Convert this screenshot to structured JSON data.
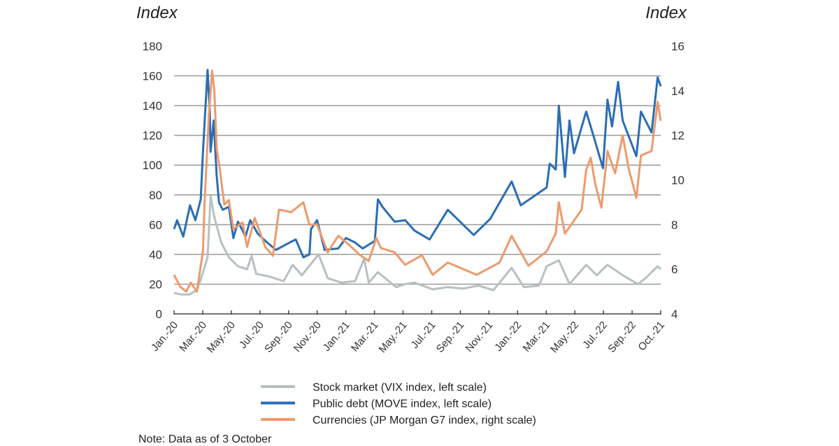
{
  "chart_data": {
    "type": "line",
    "left_axis_title": "Index",
    "right_axis_title": "Index",
    "left_ylim": [
      0,
      180
    ],
    "right_ylim": [
      4,
      16
    ],
    "left_ticks": [
      "0",
      "20",
      "40",
      "60",
      "80",
      "100",
      "120",
      "140",
      "160",
      "180"
    ],
    "right_ticks": [
      "4",
      "6",
      "8",
      "10",
      "12",
      "14",
      "16"
    ],
    "x_unit": "months since Jan-20",
    "xlim": [
      0,
      32
    ],
    "x_tick_labels": [
      "Jan.-20",
      "Mar.-20",
      "May.-20",
      "Jul.-20",
      "Sep.-20",
      "Nov.-20",
      "Jan.-21",
      "Mar.-21",
      "May.-21",
      "Jul.-21",
      "Sep.-21",
      "Nov.-21",
      "Jan.-22",
      "Mar.-21",
      "May.-22",
      "Jul.-22",
      "Sep.-22",
      "Oct.-21"
    ],
    "grid": true,
    "series": [
      {
        "name": "Stock market (VIX index, left scale)",
        "axis": "left",
        "color": "#b5c1c2",
        "points": [
          [
            0,
            14
          ],
          [
            0.5,
            13
          ],
          [
            1,
            13
          ],
          [
            1.5,
            16
          ],
          [
            1.75,
            23
          ],
          [
            2.2,
            38
          ],
          [
            2.4,
            79
          ],
          [
            2.65,
            65
          ],
          [
            3.1,
            48
          ],
          [
            3.6,
            38
          ],
          [
            4.2,
            32
          ],
          [
            4.8,
            30
          ],
          [
            5.1,
            39
          ],
          [
            5.4,
            27
          ],
          [
            6.3,
            25
          ],
          [
            7.2,
            22
          ],
          [
            7.8,
            33
          ],
          [
            8.4,
            26
          ],
          [
            9.5,
            40
          ],
          [
            10.1,
            24
          ],
          [
            11,
            21
          ],
          [
            11.9,
            22
          ],
          [
            12.5,
            37
          ],
          [
            12.8,
            21
          ],
          [
            13.4,
            28
          ],
          [
            14.6,
            18
          ],
          [
            15.2,
            20
          ],
          [
            15.8,
            21
          ],
          [
            17,
            16.5
          ],
          [
            18,
            18
          ],
          [
            19,
            17
          ],
          [
            20,
            19
          ],
          [
            21,
            16
          ],
          [
            22.2,
            31
          ],
          [
            23,
            18
          ],
          [
            24,
            19
          ],
          [
            24.5,
            32
          ],
          [
            25.3,
            36
          ],
          [
            26,
            20
          ],
          [
            27.1,
            33
          ],
          [
            27.8,
            26
          ],
          [
            28.5,
            33
          ],
          [
            29.5,
            26
          ],
          [
            30.5,
            20
          ],
          [
            31,
            24
          ],
          [
            31.8,
            32
          ],
          [
            32,
            30
          ]
        ]
      },
      {
        "name": "Public debt (MOVE index, left scale)",
        "axis": "left",
        "color": "#2a6db5",
        "points": [
          [
            0,
            57
          ],
          [
            0.2,
            63
          ],
          [
            0.6,
            52
          ],
          [
            1.05,
            73
          ],
          [
            1.4,
            63
          ],
          [
            1.75,
            77
          ],
          [
            1.9,
            109
          ],
          [
            2.2,
            164
          ],
          [
            2.35,
            136
          ],
          [
            2.4,
            109
          ],
          [
            2.6,
            130
          ],
          [
            2.8,
            93
          ],
          [
            2.95,
            75
          ],
          [
            3.2,
            70
          ],
          [
            3.6,
            72
          ],
          [
            3.9,
            51
          ],
          [
            4.2,
            62
          ],
          [
            4.7,
            52
          ],
          [
            5,
            63
          ],
          [
            5.5,
            54
          ],
          [
            6,
            49
          ],
          [
            6.7,
            43
          ],
          [
            7.6,
            48
          ],
          [
            8,
            50
          ],
          [
            8.5,
            38
          ],
          [
            8.9,
            40
          ],
          [
            9,
            57
          ],
          [
            9.4,
            63
          ],
          [
            9.9,
            43
          ],
          [
            10.8,
            44
          ],
          [
            11.3,
            51
          ],
          [
            11.9,
            48
          ],
          [
            12.4,
            44
          ],
          [
            13.2,
            49
          ],
          [
            13.4,
            77
          ],
          [
            13.7,
            72
          ],
          [
            14.5,
            62
          ],
          [
            15.2,
            63
          ],
          [
            15.8,
            56
          ],
          [
            16.8,
            50
          ],
          [
            18,
            70
          ],
          [
            19.7,
            53
          ],
          [
            20.8,
            64
          ],
          [
            22.2,
            89
          ],
          [
            22.8,
            73
          ],
          [
            24.5,
            85
          ],
          [
            24.7,
            101
          ],
          [
            25.1,
            97
          ],
          [
            25.3,
            140
          ],
          [
            25.7,
            92
          ],
          [
            26,
            130
          ],
          [
            26.3,
            108
          ],
          [
            27.1,
            136
          ],
          [
            27.6,
            119
          ],
          [
            28.2,
            98
          ],
          [
            28.5,
            144
          ],
          [
            28.8,
            126
          ],
          [
            29.2,
            156
          ],
          [
            29.5,
            130
          ],
          [
            30.4,
            106
          ],
          [
            30.7,
            136
          ],
          [
            31.4,
            122
          ],
          [
            31.8,
            159
          ],
          [
            32,
            153
          ]
        ]
      },
      {
        "name": "Currencies (JP Morgan G7 index, right scale)",
        "axis": "right",
        "color": "#ec9a6c",
        "points": [
          [
            0,
            5.75
          ],
          [
            0.4,
            5.22
          ],
          [
            0.8,
            5.0
          ],
          [
            1.1,
            5.4
          ],
          [
            1.5,
            5.0
          ],
          [
            1.9,
            6.8
          ],
          [
            2.0,
            8.9
          ],
          [
            2.3,
            13.06
          ],
          [
            2.5,
            14.9
          ],
          [
            2.65,
            14.0
          ],
          [
            2.8,
            11.4
          ],
          [
            3.0,
            10.5
          ],
          [
            3.3,
            8.9
          ],
          [
            3.6,
            9.1
          ],
          [
            3.9,
            7.8
          ],
          [
            4.5,
            8.1
          ],
          [
            4.8,
            7.0
          ],
          [
            5.3,
            8.3
          ],
          [
            6.0,
            7.0
          ],
          [
            6.5,
            6.6
          ],
          [
            6.9,
            8.67
          ],
          [
            7.7,
            8.56
          ],
          [
            8.5,
            9.0
          ],
          [
            8.9,
            8.0
          ],
          [
            9.4,
            8.0
          ],
          [
            10.1,
            6.76
          ],
          [
            10.8,
            7.5
          ],
          [
            11.5,
            7.1
          ],
          [
            12.2,
            6.65
          ],
          [
            12.8,
            6.37
          ],
          [
            13.3,
            7.4
          ],
          [
            13.6,
            6.95
          ],
          [
            14.5,
            6.76
          ],
          [
            15.2,
            6.2
          ],
          [
            16.3,
            6.63
          ],
          [
            17,
            5.75
          ],
          [
            18,
            6.3
          ],
          [
            19.9,
            5.75
          ],
          [
            21.4,
            6.3
          ],
          [
            22.2,
            7.5
          ],
          [
            23.3,
            6.16
          ],
          [
            24.5,
            6.8
          ],
          [
            25.1,
            7.6
          ],
          [
            25.3,
            9.0
          ],
          [
            25.7,
            7.6
          ],
          [
            26.8,
            8.67
          ],
          [
            27.1,
            10.45
          ],
          [
            27.4,
            11.0
          ],
          [
            27.7,
            9.8
          ],
          [
            28.1,
            8.76
          ],
          [
            28.5,
            11.3
          ],
          [
            29,
            10.3
          ],
          [
            29.5,
            12.0
          ],
          [
            29.9,
            10.5
          ],
          [
            30.4,
            9.2
          ],
          [
            30.7,
            11.1
          ],
          [
            31.4,
            11.3
          ],
          [
            31.8,
            13.5
          ],
          [
            32,
            12.65
          ]
        ]
      }
    ],
    "legend_position": "bottom"
  },
  "note": "Note: Data as of 3 October"
}
